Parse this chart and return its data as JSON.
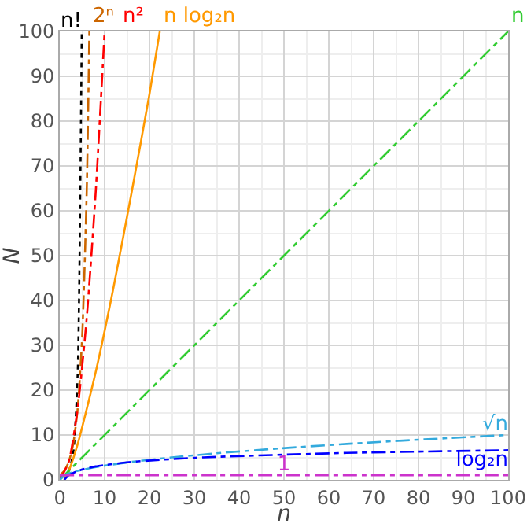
{
  "chart_data": {
    "type": "line",
    "xlabel": "n",
    "ylabel": "N",
    "xlim": [
      0,
      100
    ],
    "ylim": [
      0,
      100
    ],
    "xticks": [
      0,
      10,
      20,
      30,
      40,
      50,
      60,
      70,
      80,
      90,
      100
    ],
    "yticks": [
      0,
      10,
      20,
      30,
      40,
      50,
      60,
      70,
      80,
      90,
      100
    ],
    "grid": true,
    "legend": false,
    "marker": "none",
    "series": [
      {
        "name": "n!",
        "color": "#000000",
        "line_style": "dotted",
        "x": [
          0,
          1,
          2,
          3,
          4,
          4.9
        ],
        "values": [
          1,
          1,
          2,
          6,
          24,
          100
        ]
      },
      {
        "name": "2ⁿ",
        "color": "#cc6600",
        "line_style": "dashed",
        "x": [
          0,
          1,
          2,
          3,
          4,
          5,
          6,
          6.6
        ],
        "values": [
          1,
          2,
          4,
          8,
          16,
          32,
          64,
          100
        ]
      },
      {
        "name": "n²",
        "color": "#ff0000",
        "line_style": "dashed",
        "x": [
          0,
          2,
          4,
          6,
          8,
          10
        ],
        "values": [
          0,
          4,
          16,
          36,
          64,
          100
        ]
      },
      {
        "name": "n log₂n",
        "color": "#ff9900",
        "line_style": "solid",
        "x": [
          1,
          2,
          4,
          8,
          12,
          16,
          20,
          22.3
        ],
        "values": [
          0,
          2,
          8,
          24,
          43,
          64,
          86,
          100
        ]
      },
      {
        "name": "n",
        "color": "#33cc33",
        "line_style": "dashed",
        "x": [
          0,
          100
        ],
        "values": [
          0,
          100
        ]
      },
      {
        "name": "√n",
        "color": "#33aadd",
        "line_style": "dashed",
        "x": [
          0,
          1,
          4,
          9,
          16,
          25,
          36,
          49,
          64,
          81,
          100
        ],
        "values": [
          0,
          1,
          2,
          3,
          4,
          5,
          6,
          7,
          8,
          9,
          10
        ]
      },
      {
        "name": "log₂n",
        "color": "#0000ff",
        "line_style": "dashed",
        "x": [
          1,
          2,
          4,
          8,
          16,
          32,
          64,
          100
        ],
        "values": [
          0,
          1,
          2,
          3,
          4,
          5,
          6,
          6.6
        ]
      },
      {
        "name": "1",
        "color": "#cc33cc",
        "line_style": "dashed",
        "x": [
          0,
          50,
          100
        ],
        "values": [
          1,
          1,
          1
        ]
      }
    ]
  }
}
